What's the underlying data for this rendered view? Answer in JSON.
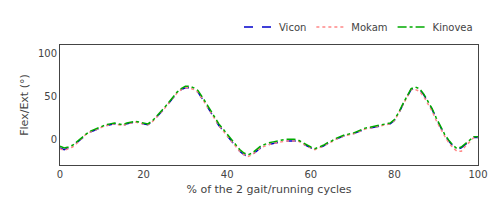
{
  "chart_data": {
    "type": "line",
    "xlabel": "% of the 2 gait/running cycles",
    "ylabel": "Flex/Ext (°)",
    "xlim": [
      0,
      100
    ],
    "ylim": [
      -30,
      110
    ],
    "xticks": [
      0,
      20,
      40,
      60,
      80,
      100
    ],
    "yticks": [
      0,
      50,
      100
    ],
    "grid": false,
    "legend": "upper right",
    "x": [
      0,
      1,
      2,
      3,
      4,
      5,
      6,
      7,
      8,
      9,
      10,
      11,
      12,
      13,
      14,
      15,
      16,
      17,
      18,
      19,
      20,
      21,
      22,
      23,
      24,
      25,
      26,
      27,
      28,
      29,
      30,
      31,
      32,
      33,
      34,
      35,
      36,
      37,
      38,
      39,
      40,
      41,
      42,
      43,
      44,
      45,
      46,
      47,
      48,
      49,
      50,
      51,
      52,
      53,
      54,
      55,
      56,
      57,
      58,
      59,
      60,
      61,
      62,
      63,
      64,
      65,
      66,
      67,
      68,
      69,
      70,
      71,
      72,
      73,
      74,
      75,
      76,
      77,
      78,
      79,
      80,
      81,
      82,
      83,
      84,
      85,
      86,
      87,
      88,
      89,
      90,
      91,
      92,
      93,
      94,
      95,
      96,
      97,
      98,
      99,
      100
    ],
    "series": [
      {
        "name": "Vicon",
        "color": "#0000CC",
        "line_style": "dashed",
        "values": [
          -10,
          -12,
          -10,
          -8,
          -4,
          0,
          5,
          8,
          10,
          12,
          14,
          16,
          17,
          18,
          17,
          16,
          18,
          19,
          20,
          19,
          18,
          17,
          20,
          25,
          30,
          36,
          42,
          48,
          54,
          58,
          60,
          60,
          58,
          55,
          48,
          40,
          32,
          24,
          16,
          10,
          4,
          -2,
          -8,
          -14,
          -18,
          -20,
          -18,
          -14,
          -10,
          -8,
          -6,
          -5,
          -4,
          -3,
          -2,
          -2,
          -2,
          -2,
          -5,
          -8,
          -10,
          -12,
          -10,
          -8,
          -5,
          -3,
          0,
          2,
          4,
          5,
          6,
          8,
          10,
          12,
          13,
          14,
          15,
          16,
          17,
          18,
          22,
          30,
          40,
          50,
          58,
          60,
          58,
          52,
          44,
          35,
          24,
          14,
          5,
          -2,
          -8,
          -12,
          -10,
          -6,
          -2,
          2,
          2
        ]
      },
      {
        "name": "Mokam",
        "color": "#FF8888",
        "line_style": "dotted",
        "values": [
          -11,
          -13,
          -11,
          -9,
          -5,
          0,
          5,
          8,
          10,
          12,
          14,
          16,
          17,
          18,
          17,
          16,
          18,
          19,
          20,
          19,
          18,
          17,
          20,
          25,
          30,
          36,
          42,
          48,
          54,
          58,
          60,
          60,
          58,
          55,
          48,
          40,
          32,
          24,
          16,
          10,
          4,
          -2,
          -8,
          -14,
          -18,
          -20,
          -18,
          -14,
          -10,
          -8,
          -6,
          -5,
          -4,
          -3,
          -2,
          -2,
          -2,
          -2,
          -5,
          -8,
          -10,
          -12,
          -10,
          -8,
          -5,
          -3,
          0,
          2,
          4,
          5,
          6,
          8,
          10,
          12,
          13,
          14,
          15,
          16,
          17,
          18,
          22,
          30,
          40,
          50,
          58,
          58,
          56,
          50,
          42,
          33,
          22,
          12,
          4,
          -4,
          -10,
          -14,
          -14,
          -8,
          -3,
          2,
          2
        ]
      },
      {
        "name": "Kinovea",
        "color": "#00AA00",
        "line_style": "dashdot",
        "values": [
          -8,
          -10,
          -9,
          -7,
          -3,
          1,
          6,
          9,
          11,
          13,
          15,
          17,
          18,
          19,
          18,
          17,
          19,
          20,
          21,
          20,
          19,
          18,
          21,
          26,
          31,
          37,
          43,
          49,
          55,
          59,
          62,
          62,
          60,
          57,
          50,
          42,
          34,
          26,
          18,
          12,
          6,
          0,
          -6,
          -12,
          -16,
          -18,
          -16,
          -12,
          -8,
          -6,
          -4,
          -3,
          -2,
          -1,
          0,
          0,
          0,
          -1,
          -4,
          -7,
          -9,
          -11,
          -9,
          -7,
          -4,
          -2,
          1,
          3,
          5,
          6,
          7,
          9,
          11,
          13,
          14,
          15,
          16,
          17,
          18,
          19,
          23,
          31,
          41,
          51,
          59,
          61,
          59,
          53,
          45,
          36,
          25,
          15,
          6,
          -1,
          -7,
          -11,
          -9,
          -5,
          -1,
          3,
          3
        ]
      }
    ]
  }
}
